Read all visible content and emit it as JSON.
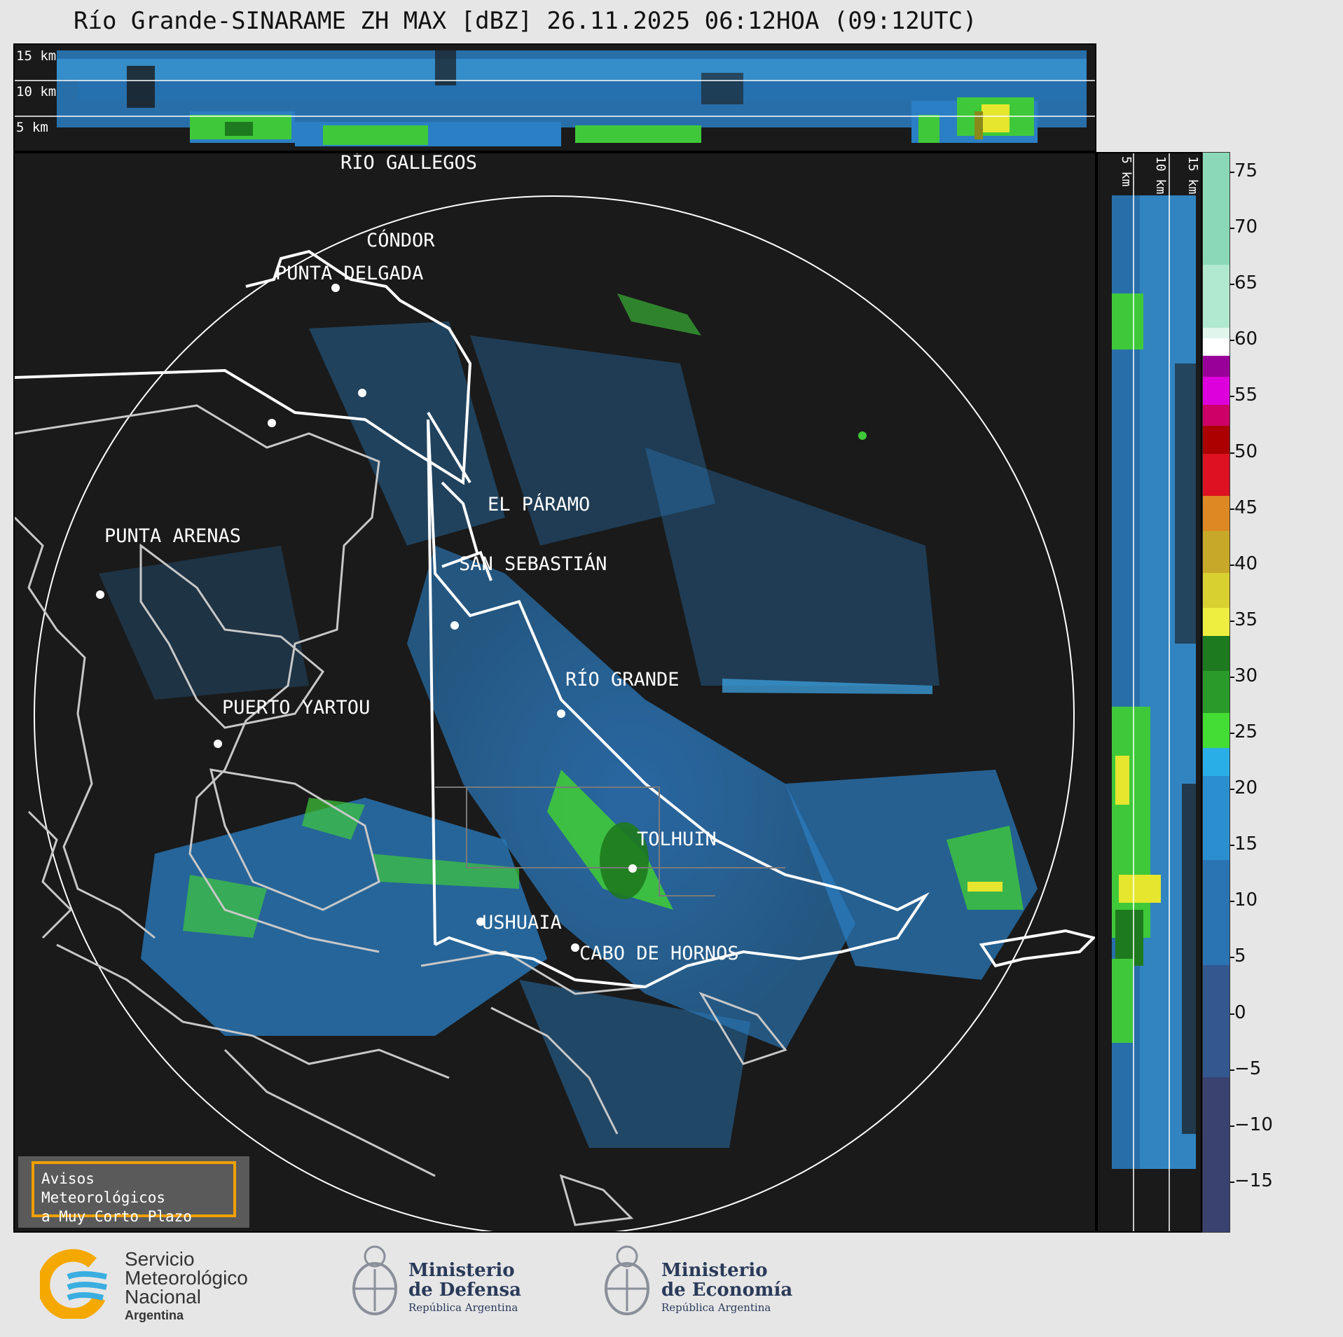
{
  "title": "Río Grande-SINARAME ZH MAX [dBZ] 26.11.2025 06:12HOA (09:12UTC)",
  "height_labels": [
    "15 km",
    "10 km",
    "5 km"
  ],
  "side_height_labels": [
    "5 km",
    "10 km",
    "15 km"
  ],
  "colorbar": {
    "unit": "dBZ",
    "ticks": [
      "75",
      "70",
      "65",
      "60",
      "55",
      "50",
      "45",
      "40",
      "35",
      "30",
      "25",
      "20",
      "15",
      "10",
      "5",
      "0",
      "−5",
      "−10",
      "−15"
    ]
  },
  "places": {
    "rio_gallegos": "RÍO GALLEGOS",
    "condor": "CÓNDOR",
    "punta_delgada": "PUNTA DELGADA",
    "el_paramo": "EL PÁRAMO",
    "punta_arenas": "PUNTA ARENAS",
    "san_sebastian": "SAN SEBASTIÁN",
    "rio_grande": "RÍO GRANDE",
    "puerto_yartou": "PUERTO YARTOU",
    "tolhuin": "TOLHUIN",
    "ushuaia": "USHUAIA",
    "cabo_de_hornos": "CABO DE HORNOS"
  },
  "aviso": {
    "line1": "Avisos Meteorológicos",
    "line2": "a Muy Corto Plazo"
  },
  "footer": {
    "smn": {
      "line1": "Servicio",
      "line2": "Meteorológico",
      "line3": "Nacional",
      "line4": "Argentina"
    },
    "defensa": {
      "line1": "Ministerio",
      "line2": "de Defensa",
      "line3": "República Argentina"
    },
    "economia": {
      "line1": "Ministerio",
      "line2": "de Economía",
      "line3": "República Argentina"
    }
  },
  "colors": {
    "background": "#1a1a1a",
    "echo_blue": "#2b7fc4",
    "echo_green": "#3fc93a",
    "echo_yellow": "#e6e62e",
    "coast_border": "#ffffff",
    "coast_grey": "#c8c8c8"
  }
}
